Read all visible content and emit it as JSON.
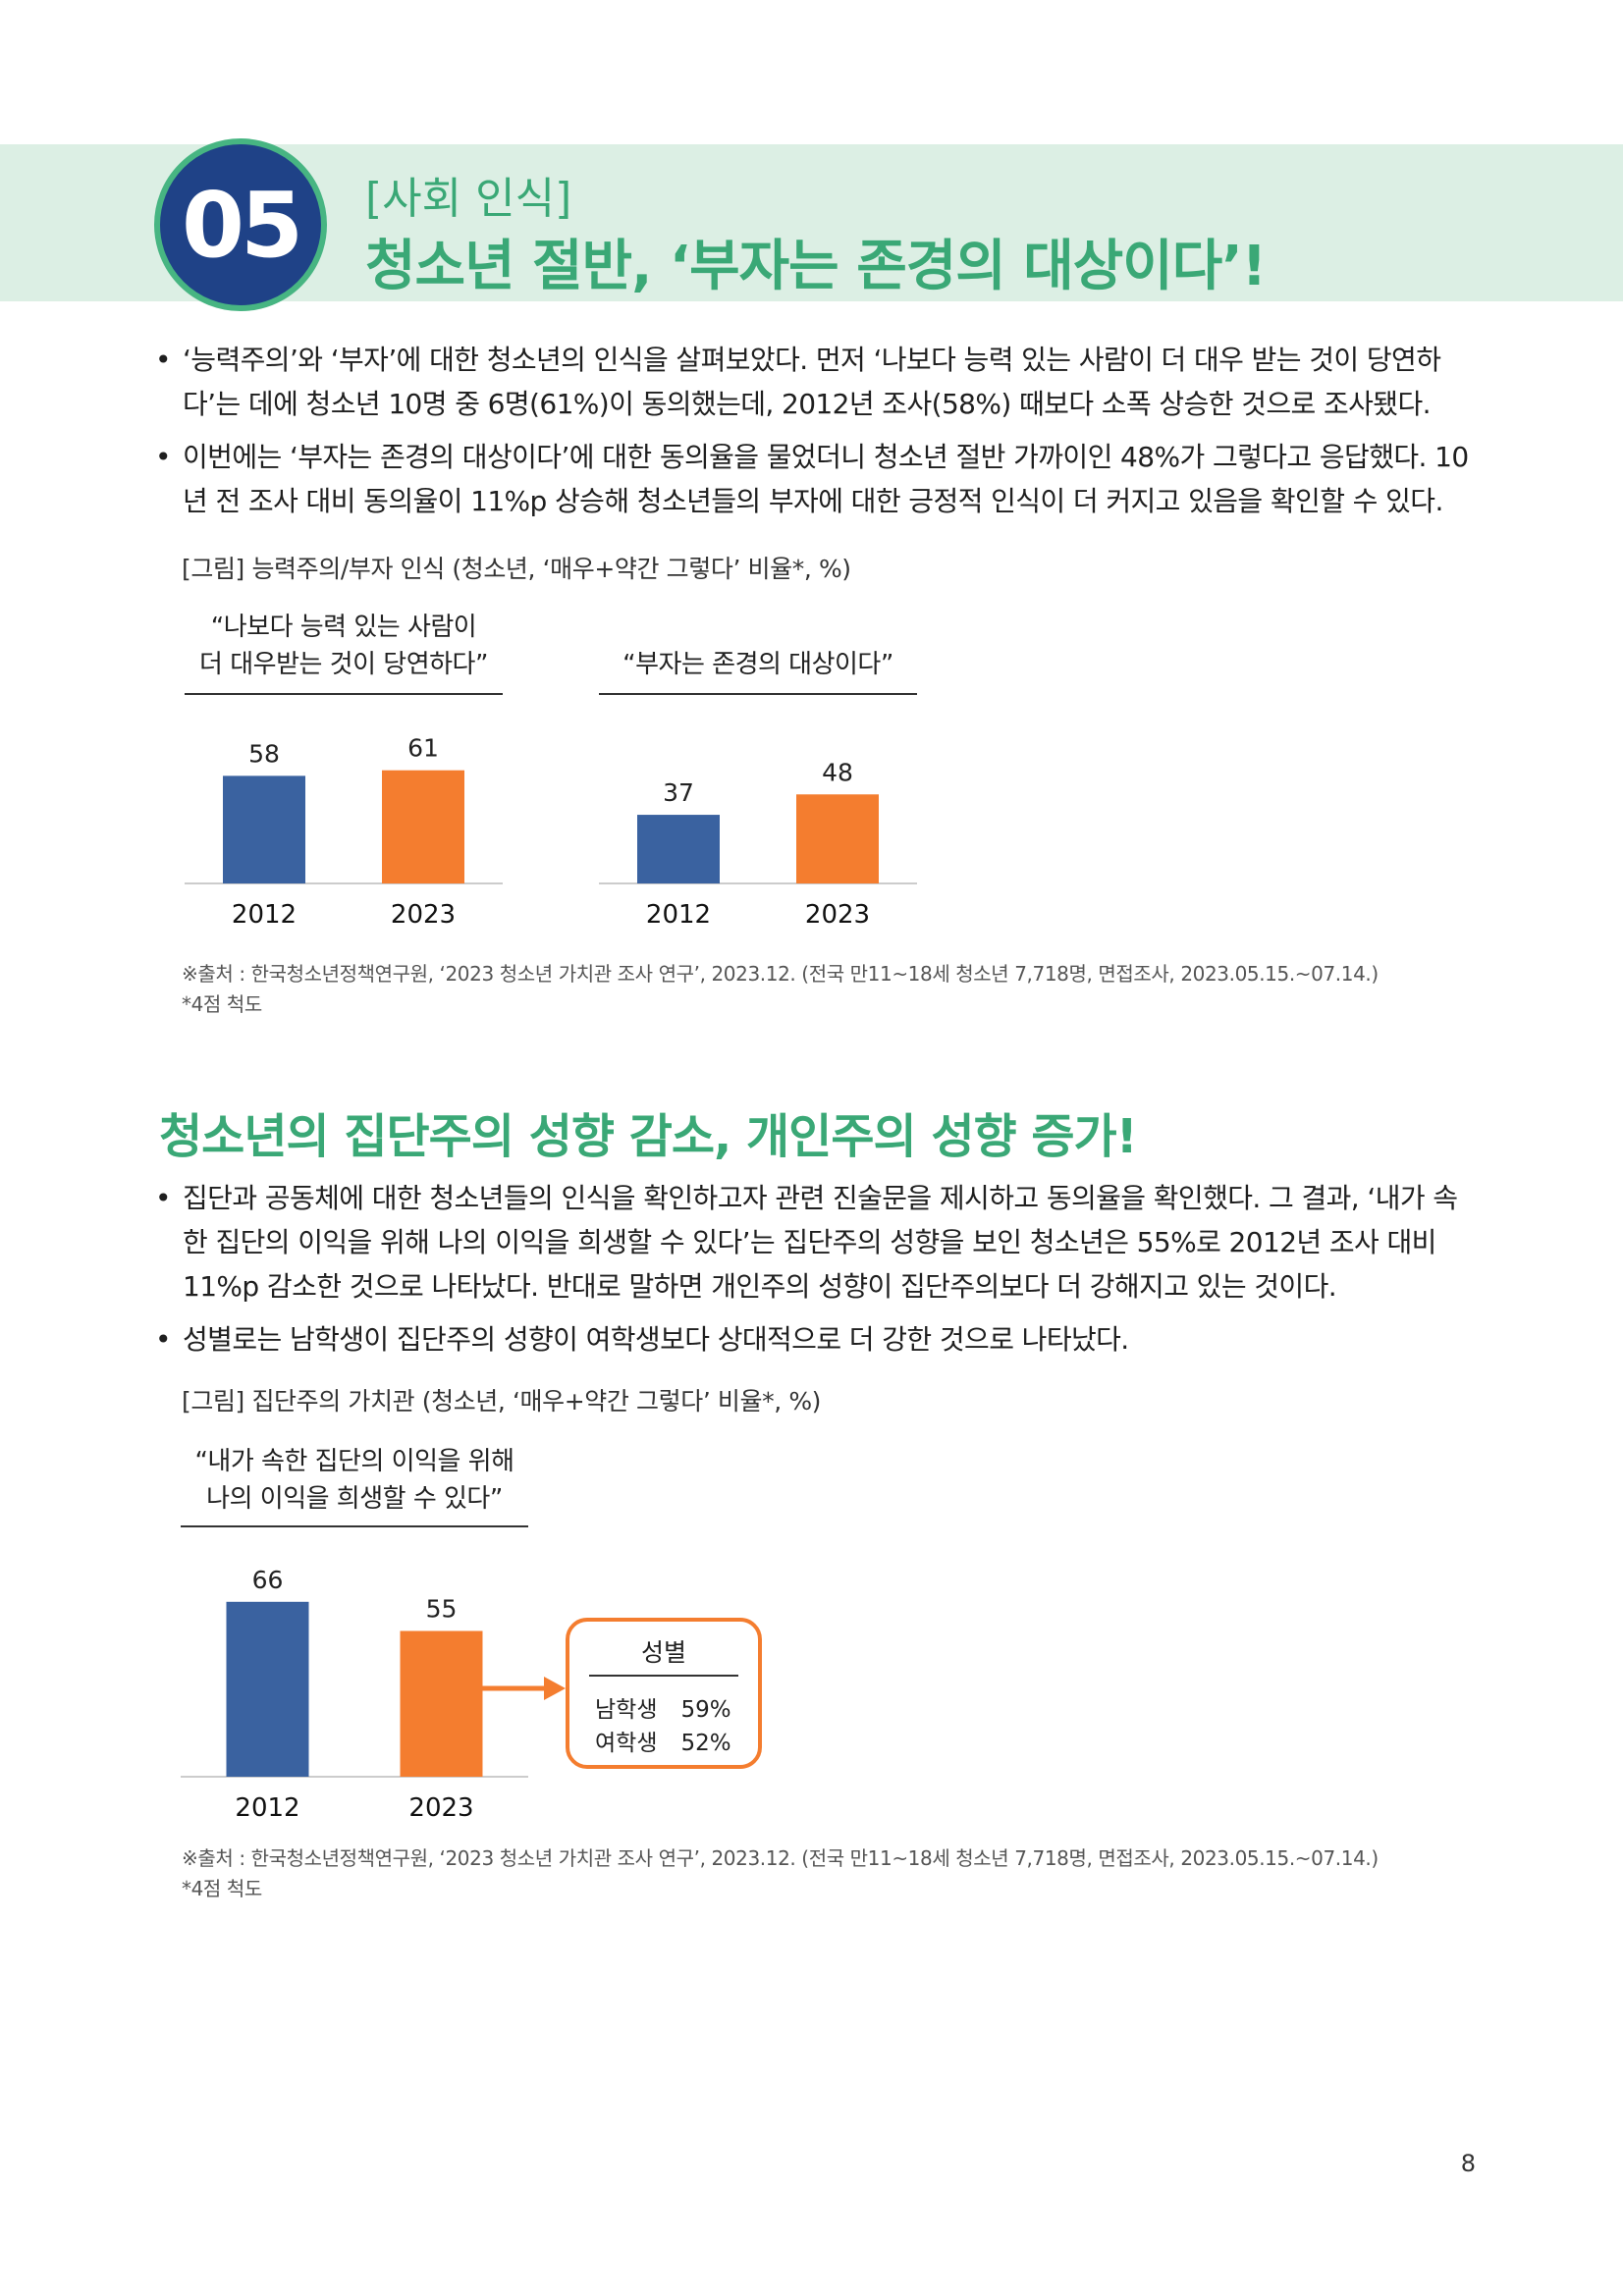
{
  "header": {
    "number": "05",
    "tag": "[사회 인식]",
    "title": "청소년 절반, ‘부자는 존경의 대상이다’!"
  },
  "section1": {
    "bullets": [
      "‘능력주의’와 ‘부자’에 대한 청소년의 인식을 살펴보았다. 먼저 ‘나보다 능력 있는 사람이 더 대우 받는 것이 당연하다’는 데에 청소년 10명 중 6명(61%)이 동의했는데, 2012년 조사(58%) 때보다 소폭 상승한 것으로 조사됐다.",
      "이번에는 ‘부자는 존경의 대상이다’에 대한 동의율을 물었더니 청소년 절반 가까이인 48%가 그렇다고 응답했다. 10년 전 조사 대비 동의율이 11%p 상승해 청소년들의 부자에 대한 긍정적 인식이 더 커지고 있음을 확인할 수 있다."
    ],
    "figure_caption": "[그림] 능력주의/부자 인식 (청소년, ‘매우+약간 그렇다’ 비율*, %)",
    "source": "※출처 : 한국청소년정책연구원, ‘2023 청소년 가치관 조사 연구’, 2023.12. (전국 만11~18세 청소년 7,718명, 면접조사, 2023.05.15.~07.14.)",
    "note": "*4점 척도"
  },
  "section2": {
    "title": "청소년의 집단주의 성향 감소, 개인주의 성향 증가!",
    "bullets": [
      "집단과 공동체에 대한 청소년들의 인식을 확인하고자 관련 진술문을 제시하고 동의율을 확인했다. 그 결과, ‘내가 속한 집단의 이익을 위해 나의 이익을 희생할 수 있다’는 집단주의 성향을 보인 청소년은 55%로 2012년 조사 대비 11%p 감소한 것으로 나타났다. 반대로 말하면 개인주의 성향이 집단주의보다 더 강해지고 있는 것이다.",
      "성별로는 남학생이 집단주의 성향이 여학생보다 상대적으로 더 강한 것으로 나타났다."
    ],
    "figure_caption": "[그림] 집단주의 가치관 (청소년, ‘매우+약간 그렇다’ 비율*, %)",
    "gender_box": {
      "title": "성별",
      "rows": [
        {
          "label": "남학생",
          "value": "59%"
        },
        {
          "label": "여학생",
          "value": "52%"
        }
      ]
    },
    "source": "※출처 : 한국청소년정책연구원, ‘2023 청소년 가치관 조사 연구’, 2023.12. (전국 만11~18세 청소년 7,718명, 면접조사, 2023.05.15.~07.14.)",
    "note": "*4점 척도"
  },
  "page_number": "8",
  "colors": {
    "accent_green": "#3aa876",
    "badge_navy": "#1f4287",
    "bar_2012": "#3a62a0",
    "bar_2023": "#f47d2f",
    "banner_bg": "#dcefe4"
  },
  "chart_data": [
    {
      "type": "bar",
      "title": "“나보다 능력 있는 사람이 더 대우받는 것이 당연하다”",
      "title_lines": [
        "“나보다 능력 있는 사람이",
        "더 대우받는 것이 당연하다”"
      ],
      "categories": [
        "2012",
        "2023"
      ],
      "values": [
        58,
        61
      ],
      "colors": [
        "#3a62a0",
        "#f47d2f"
      ],
      "ylim": [
        0,
        100
      ]
    },
    {
      "type": "bar",
      "title": "“부자는 존경의 대상이다”",
      "title_lines": [
        "“부자는 존경의 대상이다”"
      ],
      "categories": [
        "2012",
        "2023"
      ],
      "values": [
        37,
        48
      ],
      "colors": [
        "#3a62a0",
        "#f47d2f"
      ],
      "ylim": [
        0,
        100
      ]
    },
    {
      "type": "bar",
      "title": "“내가 속한 집단의 이익을 위해 나의 이익을 희생할 수 있다”",
      "title_lines": [
        "“내가 속한 집단의 이익을 위해",
        "나의 이익을 희생할 수 있다”"
      ],
      "categories": [
        "2012",
        "2023"
      ],
      "values": [
        66,
        55
      ],
      "colors": [
        "#3a62a0",
        "#f47d2f"
      ],
      "ylim": [
        0,
        100
      ]
    }
  ]
}
